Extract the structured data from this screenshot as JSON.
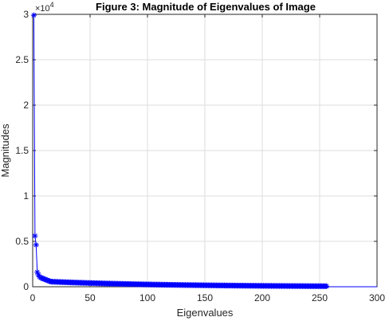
{
  "chart_data": {
    "type": "line",
    "title": "Figure 3: Magnitude of Eigenvalues of Image",
    "xlabel": "Eigenvalues",
    "ylabel": "Magnitudes",
    "y_exponent_label": "×10",
    "y_exponent_power": "4",
    "xlim": [
      0,
      300
    ],
    "ylim": [
      0,
      30000
    ],
    "x_ticks": [
      0,
      50,
      100,
      150,
      200,
      250,
      300
    ],
    "x_tick_labels": [
      "0",
      "50",
      "100",
      "150",
      "200",
      "250",
      "300"
    ],
    "y_ticks": [
      0,
      5000,
      10000,
      15000,
      20000,
      25000,
      30000
    ],
    "y_tick_labels": [
      "0",
      "0.5",
      "1",
      "1.5",
      "2",
      "2.5",
      "3"
    ],
    "grid": true,
    "series": [
      {
        "marker": "asterisk",
        "color": "#0000ff",
        "n_points": 256,
        "leading_values": [
          29900,
          5600,
          4600,
          1600,
          1300,
          1100,
          1000,
          950,
          900,
          850,
          800,
          750,
          700,
          650,
          600
        ],
        "tail_start": 560,
        "tail_end": 60
      }
    ],
    "trailing_line": {
      "x": [
        256,
        300
      ],
      "y": [
        0,
        0
      ],
      "color": "#0000ff"
    }
  }
}
